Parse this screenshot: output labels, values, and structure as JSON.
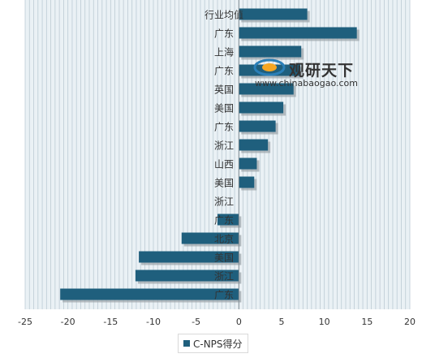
{
  "chart_data": {
    "type": "bar",
    "orientation": "horizontal",
    "categories": [
      "行业均值",
      "广东",
      "上海",
      "广东",
      "英国",
      "美国",
      "广东",
      "浙江",
      "山西",
      "美国",
      "浙江",
      "广东",
      "北京",
      "美国",
      "浙江",
      "广东"
    ],
    "series": [
      {
        "name": "C-NPS得分",
        "values": [
          8,
          13.8,
          7.3,
          7.2,
          6.4,
          5.2,
          4.3,
          3.4,
          2.1,
          1.8,
          0,
          -2.5,
          -6.7,
          -11.7,
          -12.1,
          -20.9
        ]
      }
    ],
    "xlim": [
      -25,
      20
    ],
    "x_ticks": [
      "-25",
      "-20",
      "-15",
      "-10",
      "-5",
      "0",
      "5",
      "10",
      "15",
      "20"
    ],
    "grid": "vertical",
    "legend_position": "bottom",
    "colors": {
      "bar": "#1f5f7d",
      "plot_bg": "#eaf1f5",
      "grid": "#bccbd4"
    }
  },
  "watermark": {
    "cn": "观研天下",
    "url": "www.chinabaogao.com"
  }
}
